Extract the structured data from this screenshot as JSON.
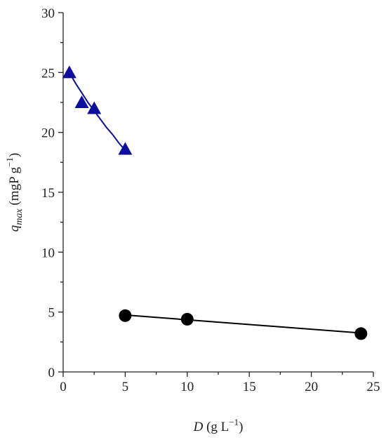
{
  "chart_data": {
    "type": "scatter",
    "xlabel": {
      "symbol": "D",
      "unit": " (g L",
      "superscript": "−1",
      "close": ")"
    },
    "ylabel": {
      "symbol": "q",
      "subscript": "max",
      "unit": " (mgP g",
      "superscript": "−1",
      "close": ")"
    },
    "xlim": [
      0,
      25
    ],
    "xticks": [
      0,
      5,
      10,
      15,
      20,
      25
    ],
    "xminorticks": [
      2.5,
      7.5,
      12.5,
      17.5,
      22.5
    ],
    "ylim": [
      0,
      30
    ],
    "yticks": [
      0,
      5,
      10,
      15,
      20,
      25,
      30
    ],
    "yminorticks": [
      2.5,
      7.5,
      12.5,
      17.5,
      22.5,
      27.5
    ],
    "series": [
      {
        "marker": "triangle",
        "color": "#0d0d9e",
        "x": [
          0.5,
          1.5,
          2.5,
          5
        ],
        "values": [
          25,
          22.5,
          22,
          18.6
        ],
        "fit_x": [
          0.5,
          1,
          1.5,
          2,
          2.5,
          3,
          3.5,
          4,
          4.5,
          5
        ],
        "fit_values": [
          25,
          24.1,
          23.3,
          22.5,
          21.8,
          21.1,
          20.4,
          19.8,
          19.1,
          18.5
        ]
      },
      {
        "marker": "circle",
        "color": "#000000",
        "x": [
          5,
          10,
          24
        ],
        "values": [
          4.7,
          4.4,
          3.2
        ],
        "fit_x": [
          5,
          24
        ],
        "fit_values": [
          4.75,
          3.25
        ]
      }
    ]
  }
}
